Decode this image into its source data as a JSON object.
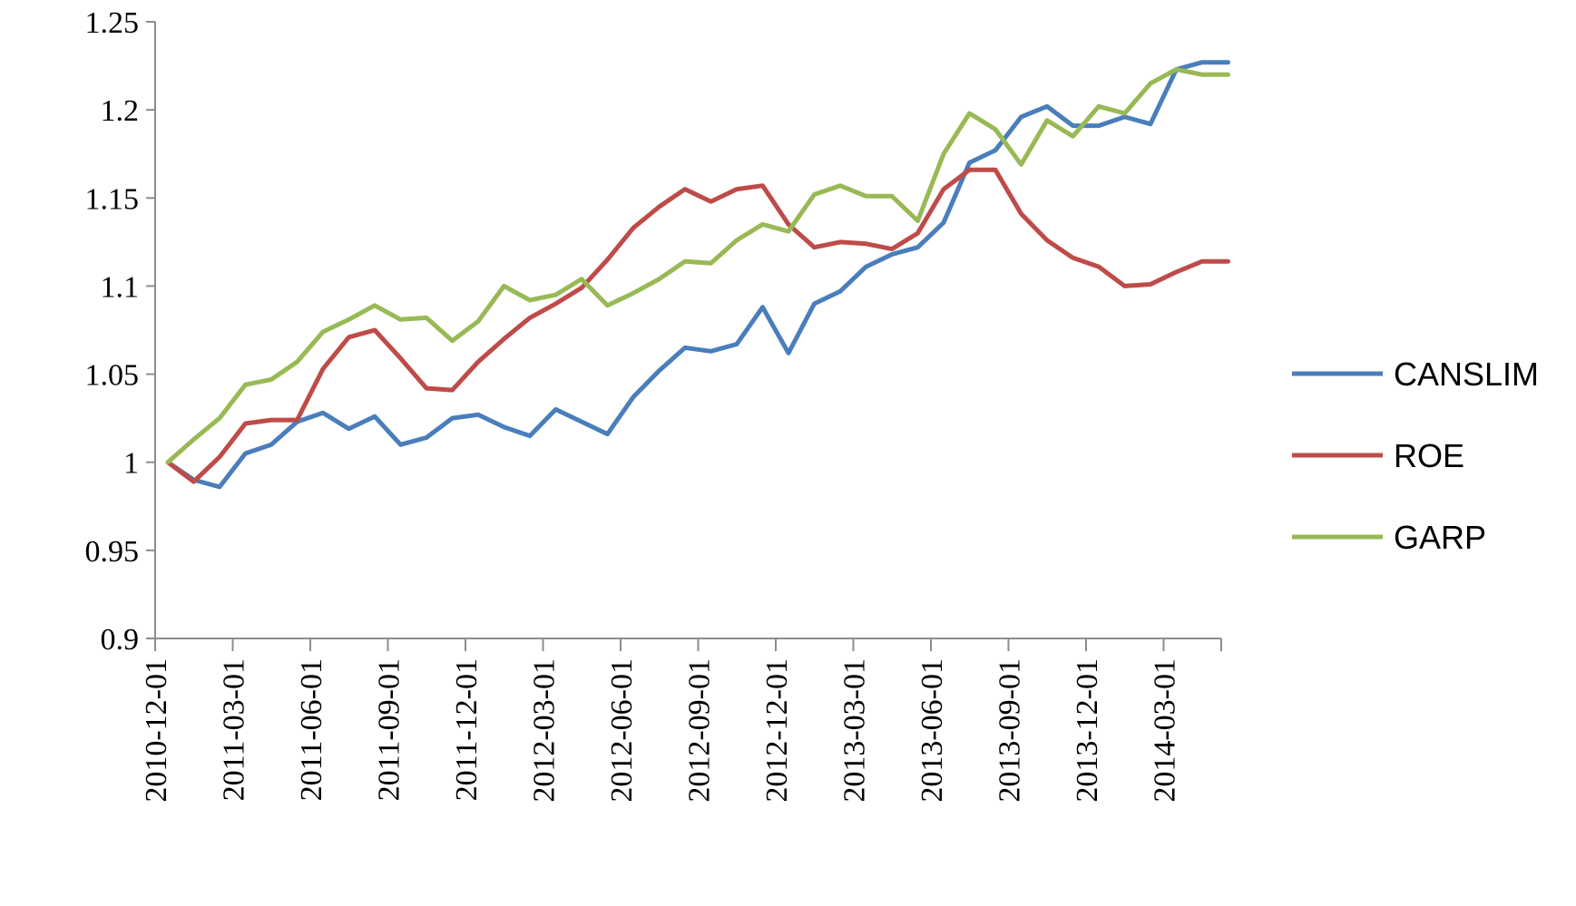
{
  "chart_data": {
    "type": "line",
    "title": "",
    "xlabel": "",
    "ylabel": "",
    "ylim": [
      0.9,
      1.25
    ],
    "yticks": [
      "0.9",
      "0.95",
      "1",
      "1.05",
      "1.1",
      "1.15",
      "1.2",
      "1.25"
    ],
    "grid": false,
    "legend_position": "right",
    "x_tick_labels": [
      "2010-12-01",
      "2011-03-01",
      "2011-06-01",
      "2011-09-01",
      "2011-12-01",
      "2012-03-01",
      "2012-06-01",
      "2012-09-01",
      "2012-12-01",
      "2013-03-01",
      "2013-06-01",
      "2013-09-01",
      "2013-12-01",
      "2014-03-01"
    ],
    "x": [
      "2010-12-01",
      "2011-01-01",
      "2011-02-01",
      "2011-03-01",
      "2011-04-01",
      "2011-05-01",
      "2011-06-01",
      "2011-07-01",
      "2011-08-01",
      "2011-09-01",
      "2011-10-01",
      "2011-11-01",
      "2011-12-01",
      "2012-01-01",
      "2012-02-01",
      "2012-03-01",
      "2012-04-01",
      "2012-05-01",
      "2012-06-01",
      "2012-07-01",
      "2012-08-01",
      "2012-09-01",
      "2012-10-01",
      "2012-11-01",
      "2012-12-01",
      "2013-01-01",
      "2013-02-01",
      "2013-03-01",
      "2013-04-01",
      "2013-05-01",
      "2013-06-01",
      "2013-07-01",
      "2013-08-01",
      "2013-09-01",
      "2013-10-01",
      "2013-11-01",
      "2013-12-01",
      "2014-01-01",
      "2014-02-01",
      "2014-03-01",
      "2014-04-01",
      "2014-05-01"
    ],
    "series": [
      {
        "name": "CANSLIM",
        "color": "#4a7ebb",
        "values": [
          1.0,
          0.99,
          0.986,
          1.005,
          1.01,
          1.023,
          1.028,
          1.019,
          1.026,
          1.01,
          1.014,
          1.025,
          1.027,
          1.02,
          1.015,
          1.03,
          1.023,
          1.016,
          1.037,
          1.052,
          1.065,
          1.063,
          1.067,
          1.088,
          1.062,
          1.09,
          1.097,
          1.111,
          1.118,
          1.122,
          1.136,
          1.17,
          1.177,
          1.196,
          1.202,
          1.191,
          1.191,
          1.196,
          1.192,
          1.223,
          1.227,
          1.227
        ]
      },
      {
        "name": "ROE",
        "color": "#be4b48",
        "values": [
          1.0,
          0.989,
          1.003,
          1.022,
          1.024,
          1.024,
          1.053,
          1.071,
          1.075,
          1.059,
          1.042,
          1.041,
          1.057,
          1.07,
          1.082,
          1.09,
          1.099,
          1.115,
          1.133,
          1.145,
          1.155,
          1.148,
          1.155,
          1.157,
          1.135,
          1.122,
          1.125,
          1.124,
          1.121,
          1.13,
          1.155,
          1.166,
          1.166,
          1.141,
          1.126,
          1.116,
          1.111,
          1.1,
          1.101,
          1.108,
          1.114,
          1.114
        ]
      },
      {
        "name": "GARP",
        "color": "#98b954",
        "values": [
          1.0,
          1.013,
          1.025,
          1.044,
          1.047,
          1.057,
          1.074,
          1.081,
          1.089,
          1.081,
          1.082,
          1.069,
          1.08,
          1.1,
          1.092,
          1.095,
          1.104,
          1.089,
          1.096,
          1.104,
          1.114,
          1.113,
          1.126,
          1.135,
          1.131,
          1.152,
          1.157,
          1.151,
          1.151,
          1.137,
          1.175,
          1.198,
          1.189,
          1.169,
          1.194,
          1.185,
          1.202,
          1.198,
          1.215,
          1.223,
          1.22,
          1.22
        ]
      }
    ]
  }
}
